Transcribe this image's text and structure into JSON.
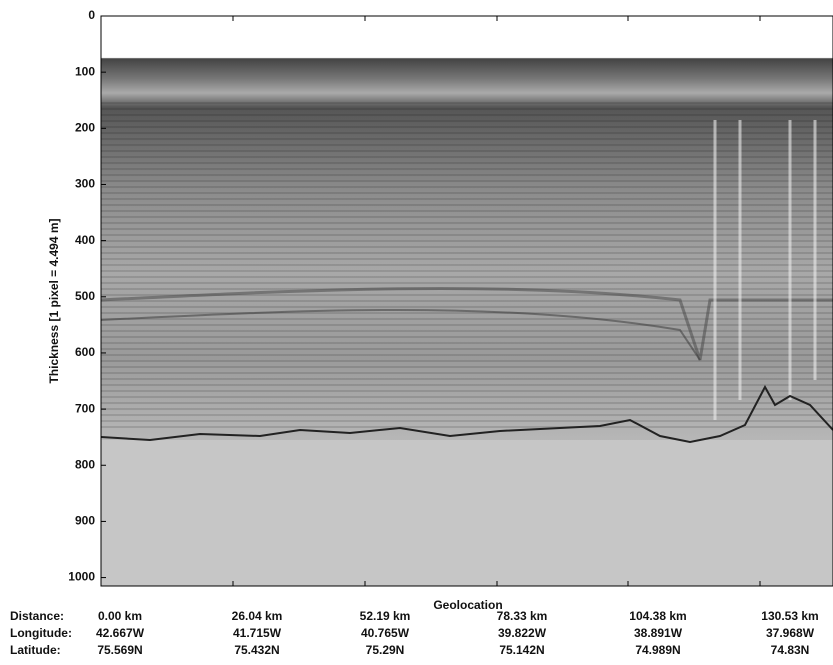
{
  "chart_data": {
    "type": "echogram",
    "ylabel": "Thickness [1 pixel = 4.494 m]",
    "xlabel": "Geolocation",
    "ylim": [
      0,
      1015
    ],
    "yticks": [
      0,
      100,
      200,
      300,
      400,
      500,
      600,
      700,
      800,
      900,
      1000
    ],
    "row_labels": [
      "Distance:",
      "Longitude:",
      "Latitude:"
    ],
    "columns": [
      [
        "0.00 km",
        "42.667W",
        "75.569N"
      ],
      [
        "26.04 km",
        "41.715W",
        "75.432N"
      ],
      [
        "52.19 km",
        "40.765W",
        "75.29N"
      ],
      [
        "78.33 km",
        "39.822W",
        "75.142N"
      ],
      [
        "104.38 km",
        "38.891W",
        "74.989N"
      ],
      [
        "130.53 km",
        "37.968W",
        "74.83N"
      ]
    ]
  }
}
